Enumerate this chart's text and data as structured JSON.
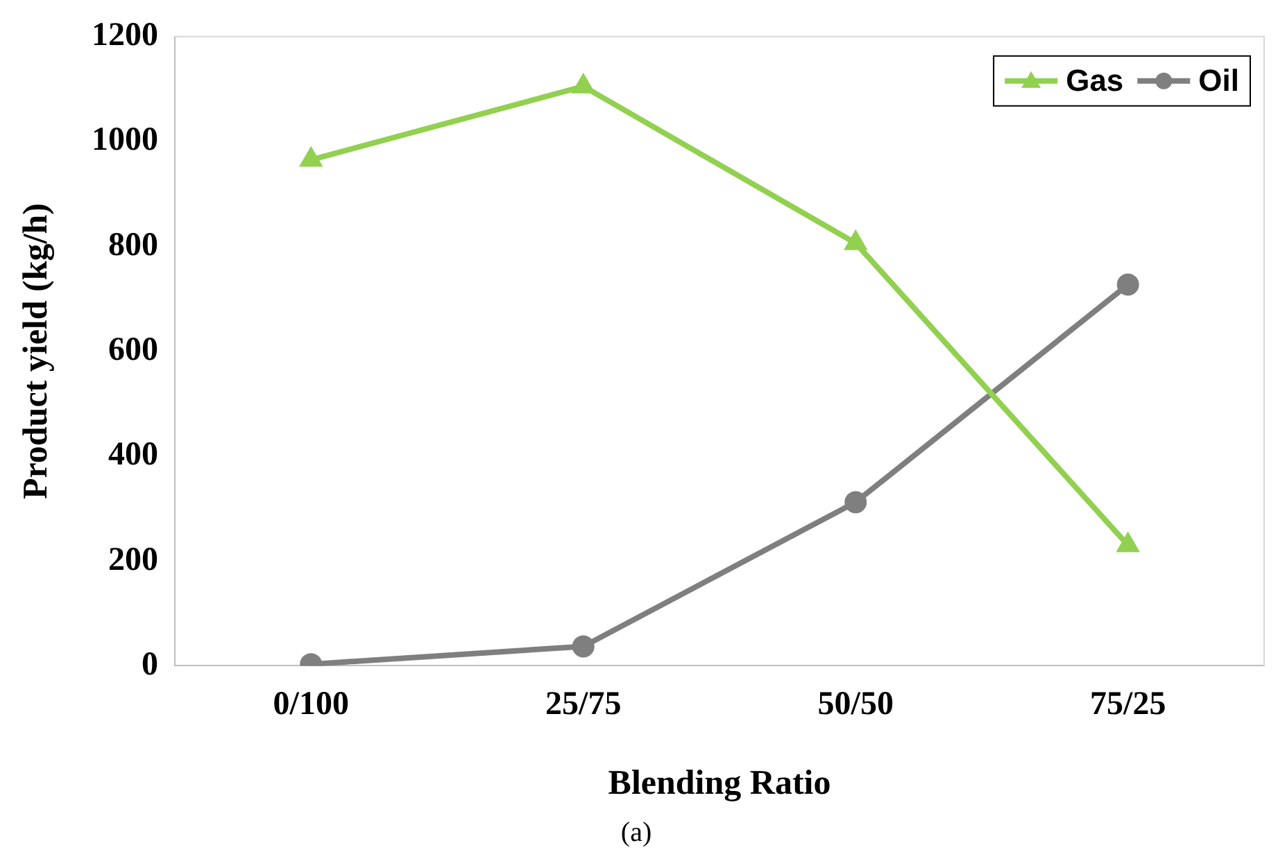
{
  "chart_data": {
    "type": "line",
    "xlabel": "Blending Ratio",
    "ylabel": "Product yield (kg/h)",
    "categories": [
      "0/100",
      "25/75",
      "50/50",
      "75/25"
    ],
    "series": [
      {
        "name": "Gas",
        "color": "#92d050",
        "marker": "triangle",
        "values": [
          965,
          1105,
          806,
          230
        ]
      },
      {
        "name": "Oil",
        "color": "#7f7f7f",
        "marker": "circle",
        "values": [
          3,
          37,
          312,
          727
        ]
      }
    ],
    "ylim": [
      0,
      1200
    ],
    "yticks": [
      0,
      200,
      400,
      600,
      800,
      1000,
      1200
    ],
    "grid": false,
    "legend": "top right",
    "line_style": "solid",
    "annotations": [
      "(a)"
    ]
  }
}
